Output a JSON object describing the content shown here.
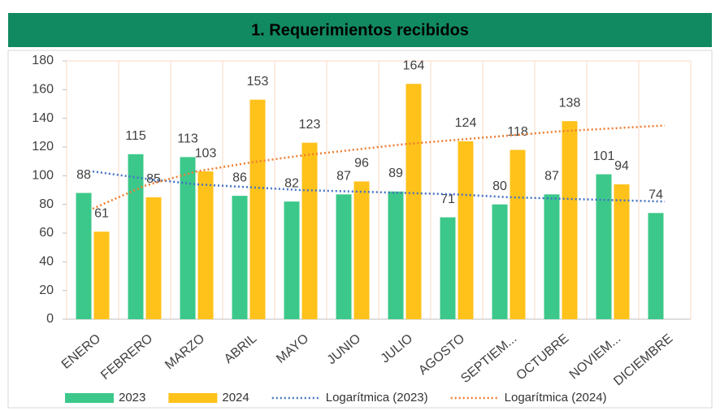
{
  "chart_data": {
    "type": "bar",
    "title": "1. Requerimientos recibidos",
    "categories": [
      "ENERO",
      "FEBRERO",
      "MARZO",
      "ABRIL",
      "MAYO",
      "JUNIO",
      "JULIO",
      "AGOSTO",
      "SEPTIEM...",
      "OCTUBRE",
      "NOVIEM...",
      "DICIEMBRE"
    ],
    "series": [
      {
        "name": "2023",
        "type": "bar",
        "color": "#3cc88a",
        "values": [
          88,
          115,
          113,
          86,
          82,
          87,
          89,
          71,
          80,
          87,
          101,
          74
        ]
      },
      {
        "name": "2024",
        "type": "bar",
        "color": "#ffc21a",
        "values": [
          61,
          85,
          103,
          153,
          123,
          96,
          164,
          124,
          118,
          138,
          94,
          null
        ]
      },
      {
        "name": "Logarítmica (2023)",
        "type": "line",
        "color": "#4472c4",
        "values": [
          103,
          98,
          94,
          92,
          90,
          89,
          88,
          87,
          85,
          84,
          83,
          82
        ]
      },
      {
        "name": "Logarítmica (2024)",
        "type": "line",
        "color": "#ed7d31",
        "values": [
          77,
          93,
          103,
          109,
          114,
          118,
          122,
          125,
          128,
          131,
          133,
          135
        ]
      }
    ],
    "ylim": [
      0,
      180
    ],
    "yticks": [
      0,
      20,
      40,
      60,
      80,
      100,
      120,
      140,
      160,
      180
    ],
    "legend": "bottom"
  }
}
